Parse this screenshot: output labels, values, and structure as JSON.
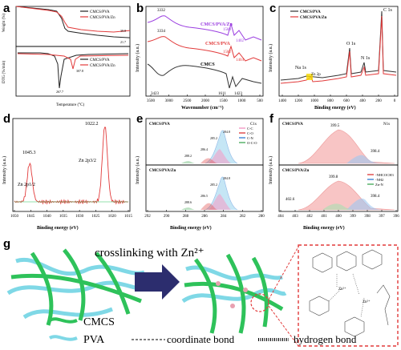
{
  "figure": {
    "panel_letters": [
      "a",
      "b",
      "c",
      "d",
      "e",
      "f",
      "g"
    ]
  },
  "chart_data": [
    {
      "id": "a",
      "type": "line",
      "subplots": [
        {
          "ylabel": "Weight (%)",
          "series": [
            {
              "name": "CMCS/PVA",
              "color": "#222222",
              "x": [
                0,
                100,
                200,
                250,
                280,
                300,
                320,
                400,
                500,
                600,
                700
              ],
              "y": [
                100,
                96,
                92,
                88,
                70,
                45,
                38,
                33,
                28,
                24,
                21.7
              ]
            },
            {
              "name": "CMCS/PVA/Zn",
              "color": "#e23a3a",
              "x": [
                0,
                100,
                200,
                250,
                280,
                300,
                320,
                400,
                500,
                600,
                700
              ],
              "y": [
                100,
                95,
                90,
                86,
                75,
                60,
                48,
                42,
                38,
                36,
                39.8
              ]
            }
          ],
          "annotations": [
            "39.8",
            "21.7"
          ]
        },
        {
          "ylabel": "DTG (%/min)",
          "xlabel": "Temperature (°C)",
          "series": [
            {
              "name": "CMCS/PVA",
              "color": "#222222"
            },
            {
              "name": "CMCS/PVA/Zn",
              "color": "#e23a3a"
            }
          ],
          "annotations": [
            "267.7",
            "307.8"
          ]
        }
      ]
    },
    {
      "id": "b",
      "type": "line",
      "xlabel": "Wavenumber (cm⁻¹)",
      "ylabel": "Intensity (a.u.)",
      "xticks": [
        "3500",
        "3000",
        "2500",
        "2000",
        "1500",
        "1000",
        "500"
      ],
      "series": [
        {
          "name": "CMCS/PVA/Zn",
          "color": "#9a3de0"
        },
        {
          "name": "CMCS/PVA",
          "color": "#e23a3a"
        },
        {
          "name": "CMCS",
          "color": "#333333"
        }
      ],
      "annotations": [
        "3332",
        "3334",
        "3423",
        "1588",
        "1402",
        "1582",
        "1404",
        "1611",
        "1423"
      ]
    },
    {
      "id": "c",
      "type": "line",
      "xlabel": "Binding energy (eV)",
      "ylabel": "Intensity (a.u.)",
      "xticks": [
        "1400",
        "1200",
        "1000",
        "800",
        "600",
        "400",
        "200",
        "0"
      ],
      "series": [
        {
          "name": "CMCS/PVA",
          "color": "#333333"
        },
        {
          "name": "CMCS/PVA/Zn",
          "color": "#e23a3a"
        }
      ],
      "annotations": [
        "C 1s",
        "O 1s",
        "N 1s",
        "Na 1s",
        "Zn 2p"
      ]
    },
    {
      "id": "d",
      "type": "line",
      "xlabel": "Binding energy (eV)",
      "ylabel": "Intensity (a.u.)",
      "xticks": [
        "1050",
        "1045",
        "1040",
        "1035",
        "1030",
        "1025",
        "1020",
        "1015"
      ],
      "xrange": [
        1050,
        1015
      ],
      "peaks": [
        {
          "label": "Zn 2p1/2",
          "value": "1045.3",
          "x": 1045.3,
          "height": 0.48
        },
        {
          "label": "Zn 2p3/2",
          "value": "1022.2",
          "x": 1022.2,
          "height": 0.95
        }
      ]
    },
    {
      "id": "e",
      "type": "line",
      "xlabel": "Binding energy (eV)",
      "ylabel": "Intensity (a.u.)",
      "xticks": [
        "292",
        "290",
        "288",
        "286",
        "284",
        "282",
        "280"
      ],
      "subplots": [
        {
          "title": "CMCS/PVA",
          "peaks": [
            "288.2",
            "286.4",
            "285.2",
            "284.8"
          ]
        },
        {
          "title": "CMCS/PVA/Zn",
          "peaks": [
            "288.6",
            "286.5",
            "285.2",
            "284.8"
          ]
        }
      ],
      "legend": [
        {
          "label": "C-C",
          "color": "#f2a0c8"
        },
        {
          "label": "C-O",
          "color": "#e05050"
        },
        {
          "label": "C-N",
          "color": "#4a8ad8"
        },
        {
          "label": "O-C-O",
          "color": "#59b36a"
        }
      ],
      "tag": "C1s"
    },
    {
      "id": "f",
      "type": "line",
      "xlabel": "Binding energy (eV)",
      "ylabel": "Intensity (a.u.)",
      "xticks": [
        "404",
        "403",
        "402",
        "401",
        "400",
        "399",
        "398",
        "397",
        "396"
      ],
      "subplots": [
        {
          "title": "CMCS/PVA",
          "peaks": [
            "399.5",
            "398.4"
          ]
        },
        {
          "title": "CMCS/PVA/Zn",
          "peaks": [
            "402.6",
            "399.8",
            "398.4"
          ]
        }
      ],
      "legend": [
        {
          "label": "-NHCOCH3",
          "color": "#e05050"
        },
        {
          "label": "-NH2",
          "color": "#4a8ad8"
        },
        {
          "label": "Zn-N",
          "color": "#59b36a"
        }
      ],
      "tag": "N1s"
    }
  ],
  "scheme": {
    "arrow_text": "crosslinking with Zn²⁺",
    "legend": [
      {
        "label": "CMCS",
        "color": "#2ec25a"
      },
      {
        "label": "PVA",
        "color": "#7fd8e6"
      },
      {
        "label": "coordinate bond"
      },
      {
        "label": "hydrogen bond"
      }
    ]
  }
}
